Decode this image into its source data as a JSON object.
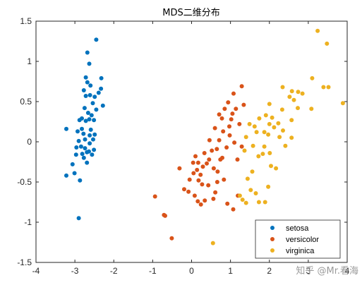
{
  "chart_data": {
    "type": "scatter",
    "title": "MDS二维分布",
    "xlabel": "",
    "ylabel": "",
    "xlim": [
      -4,
      4
    ],
    "ylim": [
      -1.5,
      1.5
    ],
    "xticks": [
      "-4",
      "-3",
      "-2",
      "-1",
      "0",
      "1",
      "2",
      "3",
      "4"
    ],
    "yticks": [
      "-1.5",
      "-1",
      "-0.5",
      "0",
      "0.5",
      "1",
      "1.5"
    ],
    "grid": false,
    "legend_position": "bottom-right",
    "series": [
      {
        "name": "setosa",
        "color": "#0072BD",
        "points": [
          [
            -2.45,
            1.27
          ],
          [
            -2.68,
            1.11
          ],
          [
            -2.63,
            0.97
          ],
          [
            -2.72,
            0.8
          ],
          [
            -2.68,
            0.74
          ],
          [
            -2.6,
            0.7
          ],
          [
            -2.77,
            0.64
          ],
          [
            -2.32,
            0.79
          ],
          [
            -2.33,
            0.66
          ],
          [
            -2.39,
            0.61
          ],
          [
            -2.72,
            0.57
          ],
          [
            -2.61,
            0.58
          ],
          [
            -2.49,
            0.56
          ],
          [
            -2.54,
            0.48
          ],
          [
            -2.28,
            0.45
          ],
          [
            -2.45,
            0.4
          ],
          [
            -2.75,
            0.42
          ],
          [
            -2.66,
            0.36
          ],
          [
            -2.57,
            0.33
          ],
          [
            -2.82,
            0.29
          ],
          [
            -2.88,
            0.27
          ],
          [
            -2.51,
            0.27
          ],
          [
            -2.72,
            0.26
          ],
          [
            -2.63,
            0.28
          ],
          [
            -2.82,
            0.16
          ],
          [
            -2.59,
            0.15
          ],
          [
            -2.93,
            0.13
          ],
          [
            -3.22,
            0.16
          ],
          [
            -2.78,
            0.1
          ],
          [
            -2.62,
            0.08
          ],
          [
            -2.49,
            0.09
          ],
          [
            -2.53,
            0.03
          ],
          [
            -2.74,
            0.03
          ],
          [
            -2.9,
            0.01
          ],
          [
            -2.62,
            -0.02
          ],
          [
            -2.84,
            -0.06
          ],
          [
            -2.96,
            -0.07
          ],
          [
            -2.74,
            -0.08
          ],
          [
            -2.51,
            -0.1
          ],
          [
            -2.64,
            -0.12
          ],
          [
            -2.69,
            -0.13
          ],
          [
            -2.81,
            -0.15
          ],
          [
            -2.56,
            -0.16
          ],
          [
            -2.97,
            -0.16
          ],
          [
            -2.77,
            -0.2
          ],
          [
            -2.69,
            -0.26
          ],
          [
            -3.06,
            -0.28
          ],
          [
            -3.01,
            -0.39
          ],
          [
            -3.22,
            -0.42
          ],
          [
            -2.87,
            -0.48
          ],
          [
            -2.9,
            -0.95
          ]
        ]
      },
      {
        "name": "versicolor",
        "color": "#D95319",
        "points": [
          [
            1.29,
            0.69
          ],
          [
            1.08,
            0.6
          ],
          [
            0.94,
            0.49
          ],
          [
            1.34,
            0.46
          ],
          [
            1.14,
            0.41
          ],
          [
            1.05,
            0.35
          ],
          [
            0.85,
            0.41
          ],
          [
            0.71,
            0.34
          ],
          [
            0.78,
            0.29
          ],
          [
            1.02,
            0.28
          ],
          [
            1.23,
            0.22
          ],
          [
            0.97,
            0.19
          ],
          [
            0.81,
            0.13
          ],
          [
            0.6,
            0.17
          ],
          [
            0.98,
            0.08
          ],
          [
            0.71,
            0.02
          ],
          [
            0.46,
            0.02
          ],
          [
            1.1,
            -0.01
          ],
          [
            1.29,
            -0.06
          ],
          [
            0.52,
            -0.11
          ],
          [
            0.65,
            -0.09
          ],
          [
            0.9,
            -0.07
          ],
          [
            0.33,
            -0.14
          ],
          [
            0.79,
            -0.2
          ],
          [
            0.1,
            -0.18
          ],
          [
            1.18,
            -0.22
          ],
          [
            0.74,
            -0.22
          ],
          [
            0.45,
            -0.22
          ],
          [
            0.17,
            -0.26
          ],
          [
            0.39,
            -0.27
          ],
          [
            0.04,
            -0.26
          ],
          [
            0.29,
            -0.31
          ],
          [
            0.57,
            -0.33
          ],
          [
            0.14,
            -0.35
          ],
          [
            -0.31,
            -0.33
          ],
          [
            0.67,
            -0.37
          ],
          [
            0.05,
            -0.39
          ],
          [
            0.23,
            -0.41
          ],
          [
            -0.05,
            -0.47
          ],
          [
            0.83,
            -0.47
          ],
          [
            0.18,
            -0.48
          ],
          [
            0.66,
            -0.5
          ],
          [
            0.27,
            -0.53
          ],
          [
            0.43,
            -0.54
          ],
          [
            -0.19,
            -0.59
          ],
          [
            -0.08,
            -0.62
          ],
          [
            0.61,
            -0.63
          ],
          [
            0.08,
            -0.67
          ],
          [
            -0.94,
            -0.68
          ],
          [
            1.19,
            -0.67
          ],
          [
            0.34,
            -0.73
          ],
          [
            0.56,
            -0.71
          ],
          [
            0.16,
            -0.74
          ],
          [
            0.92,
            -0.77
          ],
          [
            0.24,
            -0.78
          ],
          [
            1.07,
            -0.84
          ],
          [
            -0.71,
            -0.91
          ],
          [
            -0.68,
            -0.92
          ],
          [
            -0.51,
            -1.2
          ]
        ]
      },
      {
        "name": "virginica",
        "color": "#EDB120",
        "points": [
          [
            3.24,
            1.38
          ],
          [
            3.48,
            1.22
          ],
          [
            3.1,
            0.79
          ],
          [
            2.34,
            0.68
          ],
          [
            2.58,
            0.63
          ],
          [
            2.74,
            0.62
          ],
          [
            3.39,
            0.68
          ],
          [
            3.52,
            0.68
          ],
          [
            2.85,
            0.6
          ],
          [
            2.52,
            0.56
          ],
          [
            2.63,
            0.52
          ],
          [
            3.89,
            0.48
          ],
          [
            2.0,
            0.47
          ],
          [
            2.73,
            0.42
          ],
          [
            3.08,
            0.41
          ],
          [
            2.33,
            0.4
          ],
          [
            1.91,
            0.33
          ],
          [
            2.07,
            0.3
          ],
          [
            1.74,
            0.29
          ],
          [
            2.57,
            0.27
          ],
          [
            2.23,
            0.23
          ],
          [
            1.49,
            0.22
          ],
          [
            2.0,
            0.22
          ],
          [
            2.12,
            0.18
          ],
          [
            1.62,
            0.19
          ],
          [
            2.35,
            0.14
          ],
          [
            1.67,
            0.12
          ],
          [
            1.87,
            0.12
          ],
          [
            1.97,
            0.09
          ],
          [
            2.26,
            0.06
          ],
          [
            1.4,
            0.06
          ],
          [
            2.57,
            0.05
          ],
          [
            1.87,
            -0.06
          ],
          [
            1.58,
            -0.05
          ],
          [
            2.41,
            -0.05
          ],
          [
            2.01,
            -0.14
          ],
          [
            1.36,
            -0.11
          ],
          [
            1.83,
            -0.15
          ],
          [
            1.72,
            -0.18
          ],
          [
            2.04,
            -0.3
          ],
          [
            2.17,
            -0.33
          ],
          [
            1.56,
            -0.37
          ],
          [
            1.44,
            -0.46
          ],
          [
            1.97,
            -0.56
          ],
          [
            1.52,
            -0.6
          ],
          [
            1.65,
            -0.64
          ],
          [
            1.24,
            -0.67
          ],
          [
            1.31,
            -0.72
          ],
          [
            1.73,
            -0.75
          ],
          [
            1.4,
            -0.76
          ],
          [
            1.89,
            -0.75
          ],
          [
            0.55,
            -1.26
          ]
        ]
      }
    ]
  },
  "watermark": "知乎 @Mr.看海"
}
